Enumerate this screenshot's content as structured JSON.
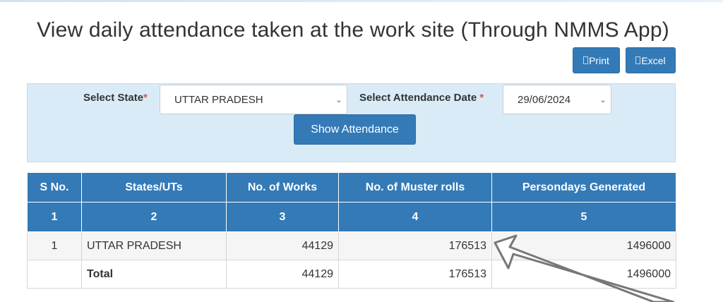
{
  "page": {
    "title": "View daily attendance taken at the work site (Through NMMS App)"
  },
  "toolbar": {
    "print_label": "Print",
    "excel_label": "Excel"
  },
  "filters": {
    "state_label": "Select State",
    "state_value": "UTTAR PRADESH",
    "date_label": "Select Attendance Date",
    "date_value": "29/06/2024",
    "required_mark": "*",
    "show_button": "Show Attendance"
  },
  "table": {
    "headers": [
      "S No.",
      "States/UTs",
      "No. of Works",
      "No. of Muster rolls",
      "Persondays Generated"
    ],
    "column_numbers": [
      "1",
      "2",
      "3",
      "4",
      "5"
    ],
    "rows": [
      {
        "sno": "1",
        "state": "UTTAR PRADESH",
        "works": "44129",
        "muster_rolls": "176513",
        "persondays": "1496000"
      }
    ],
    "total": {
      "label": "Total",
      "works": "44129",
      "muster_rolls": "176513",
      "persondays": "1496000"
    }
  },
  "colors": {
    "primary": "#337ab7",
    "panel_bg": "#d9ebf7",
    "required": "#d9534f",
    "total_label": "#cc0000",
    "link": "#2a6fb0",
    "annotation_arrow": "#777777"
  },
  "icons": {
    "print": "print-icon",
    "excel": "excel-icon",
    "dropdown": "chevron-down-icon",
    "annotation": "arrow-annotation"
  }
}
